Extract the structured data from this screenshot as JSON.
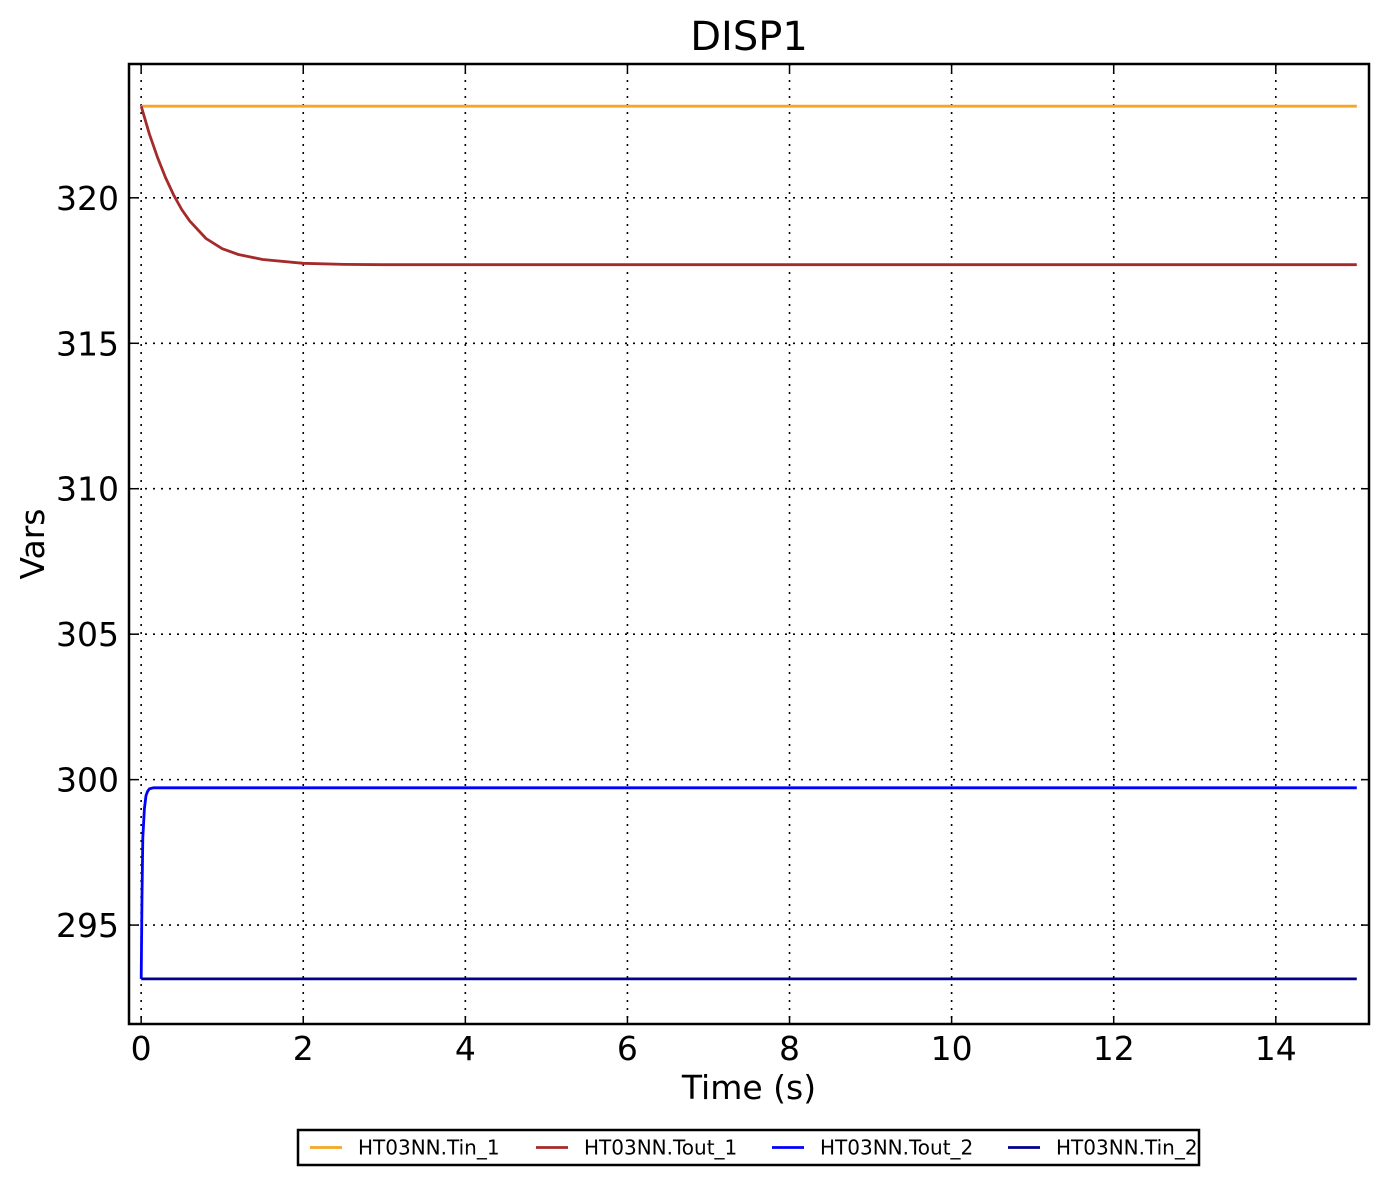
{
  "chart_data": {
    "type": "line",
    "title": "DISP1",
    "xlabel": "Time (s)",
    "ylabel": "Vars",
    "xlim": [
      -0.15,
      15.15
    ],
    "ylim": [
      291.6,
      324.6
    ],
    "xticks": [
      0,
      2,
      4,
      6,
      8,
      10,
      12,
      14
    ],
    "xtick_labels": [
      "0",
      "2",
      "4",
      "6",
      "8",
      "10",
      "12",
      "14"
    ],
    "yticks": [
      295,
      300,
      305,
      310,
      315,
      320
    ],
    "ytick_labels": [
      "295",
      "300",
      "305",
      "310",
      "315",
      "320"
    ],
    "grid": true,
    "legend_position": "bottom-center",
    "series": [
      {
        "name": "HT03NN.Tin_1",
        "color": "#f5a623",
        "x": [
          0,
          15
        ],
        "y": [
          323.15,
          323.15
        ]
      },
      {
        "name": "HT03NN.Tout_1",
        "color": "#a52a2a",
        "x": [
          0,
          0.1,
          0.2,
          0.3,
          0.4,
          0.5,
          0.6,
          0.8,
          1.0,
          1.2,
          1.5,
          2.0,
          2.5,
          3.0,
          4.0,
          6.0,
          8.0,
          10.0,
          12.0,
          15.0
        ],
        "y": [
          323.15,
          322.2,
          321.4,
          320.7,
          320.1,
          319.6,
          319.2,
          318.6,
          318.25,
          318.05,
          317.88,
          317.75,
          317.71,
          317.7,
          317.7,
          317.7,
          317.7,
          317.7,
          317.7,
          317.7
        ]
      },
      {
        "name": "HT03NN.Tout_2",
        "color": "#0000ff",
        "x": [
          0,
          0.01,
          0.02,
          0.04,
          0.06,
          0.08,
          0.1,
          0.15,
          0.3,
          1.0,
          5.0,
          10.0,
          15.0
        ],
        "y": [
          293.15,
          296.0,
          298.0,
          299.0,
          299.45,
          299.6,
          299.68,
          299.72,
          299.72,
          299.72,
          299.72,
          299.72,
          299.72
        ]
      },
      {
        "name": "HT03NN.Tin_2",
        "color": "#00008b",
        "x": [
          0,
          15
        ],
        "y": [
          293.15,
          293.15
        ]
      }
    ]
  }
}
